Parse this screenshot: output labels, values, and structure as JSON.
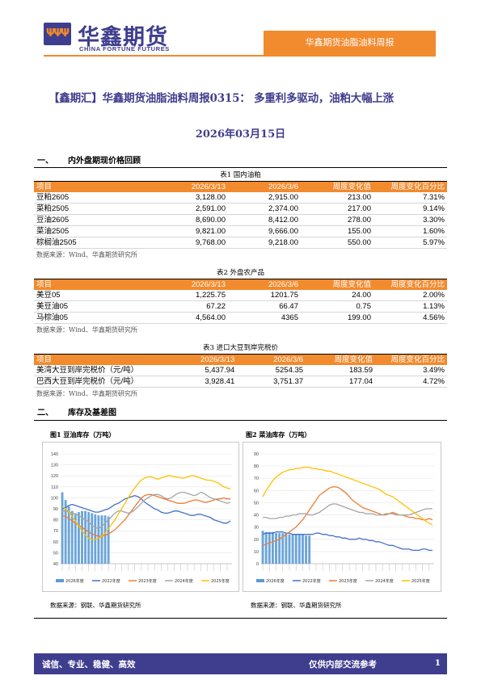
{
  "header": {
    "brand_cn": "华鑫期货",
    "brand_en": "CHINA FORTUNE FUTURES",
    "report_tag": "华鑫期货油脂油料周报"
  },
  "title": "【鑫期汇】华鑫期货油脂油料周报0315：  多重利多驱动，油粕大幅上涨",
  "date": "2026年03月15日",
  "sections": {
    "s1": {
      "num": "一、",
      "title": "内外盘期现价格回顾"
    },
    "s2": {
      "num": "二、",
      "title": "库存及基差图"
    }
  },
  "tables": [
    {
      "caption": "表1 国内油粕",
      "columns": [
        "项目",
        "2026/3/13",
        "2026/3/6",
        "周度变化值",
        "周度变化百分比"
      ],
      "rows": [
        [
          "豆粕2605",
          "3,128.00",
          "2,915.00",
          "213.00",
          "7.31%"
        ],
        [
          "菜粕2505",
          "2,591.00",
          "2,374.00",
          "217.00",
          "9.14%"
        ],
        [
          "豆油2605",
          "8,690.00",
          "8,412.00",
          "278.00",
          "3.30%"
        ],
        [
          "菜油2505",
          "9,821.00",
          "9,666.00",
          "155.00",
          "1.60%"
        ],
        [
          "棕榈油2505",
          "9,768.00",
          "9,218.00",
          "550.00",
          "5.97%"
        ]
      ],
      "source": "数据来源：Wind、华鑫期货研究所"
    },
    {
      "caption": "表2 外盘农产品",
      "columns": [
        "项目",
        "2026/3/13",
        "2026/3/6",
        "周度变化值",
        "周度变化百分比"
      ],
      "rows": [
        [
          "美豆05",
          "1,225.75",
          "1201.75",
          "24.00",
          "2.00%"
        ],
        [
          "美豆油05",
          "67.22",
          "66.47",
          "0.75",
          "1.13%"
        ],
        [
          "马棕油05",
          "4,564.00",
          "4365",
          "199.00",
          "4.56%"
        ]
      ],
      "source": "数据来源：Wind、华鑫期货研究所"
    },
    {
      "caption": "表3 进口大豆到岸完税价",
      "columns": [
        "项目",
        "2026/3/13",
        "2026/3/6",
        "周度变化值",
        "周度变化百分比"
      ],
      "rows": [
        [
          "美湾大豆到岸完税价（元/吨）",
          "5,437.94",
          "5254.35",
          "183.59",
          "3.49%"
        ],
        [
          "巴西大豆到岸完税价（元/吨）",
          "3,928.41",
          "3,751.37",
          "177.04",
          "4.72%"
        ]
      ],
      "source": "数据来源：Wind、华鑫期货研究所"
    }
  ],
  "chart_data": [
    {
      "type": "line",
      "title": "图1 豆油库存（万吨）",
      "ylim": [
        40,
        140
      ],
      "yticks": [
        "140",
        "130",
        "120",
        "110",
        "100",
        "90",
        "80",
        "70",
        "60",
        "50",
        "40"
      ],
      "x_count": 52,
      "series": [
        {
          "name": "2026年度",
          "color": "#5b9bd5",
          "kind": "bar",
          "values": [
            105,
            98,
            92,
            88,
            86,
            87,
            88,
            88,
            87,
            86,
            85,
            84,
            84,
            84,
            83
          ]
        },
        {
          "name": "2022年度",
          "color": "#4472c4",
          "values": [
            90,
            91,
            93,
            94,
            93,
            92,
            91,
            90,
            89,
            88,
            87,
            87,
            88,
            89,
            90,
            92,
            94,
            95,
            97,
            99,
            100,
            101,
            102,
            101,
            99,
            96,
            94,
            92,
            90,
            89,
            87,
            86,
            86,
            87,
            88,
            88,
            87,
            86,
            85,
            84,
            84,
            85,
            85,
            84,
            83,
            82,
            80,
            79,
            78,
            77,
            77,
            79
          ]
        },
        {
          "name": "2023年度",
          "color": "#ed7d31",
          "values": [
            84,
            83,
            81,
            79,
            77,
            75,
            73,
            71,
            69,
            67,
            66,
            65,
            65,
            66,
            67,
            69,
            71,
            74,
            77,
            80,
            84,
            88,
            92,
            96,
            100,
            102,
            103,
            103,
            102,
            101,
            100,
            99,
            98,
            97,
            96,
            95,
            95,
            95,
            96,
            97,
            98,
            98,
            97,
            96,
            96,
            97,
            98,
            99,
            99,
            100,
            99,
            99
          ]
        },
        {
          "name": "2024年度",
          "color": "#a5a5a5",
          "values": [
            88,
            88,
            87,
            86,
            85,
            84,
            82,
            80,
            78,
            75,
            73,
            72,
            74,
            77,
            80,
            83,
            86,
            88,
            88,
            87,
            86,
            87,
            89,
            92,
            95,
            98,
            100,
            102,
            103,
            103,
            102,
            100,
            99,
            100,
            102,
            104,
            105,
            105,
            104,
            103,
            102,
            103,
            105,
            104,
            102,
            100,
            99,
            98,
            97,
            96,
            95,
            96
          ]
        },
        {
          "name": "2025年度",
          "color": "#ffc000",
          "values": [
            92,
            90,
            87,
            83,
            79,
            74,
            70,
            66,
            63,
            62,
            62,
            63,
            65,
            68,
            72,
            76,
            80,
            85,
            90,
            95,
            100,
            105,
            109,
            113,
            116,
            118,
            119,
            119,
            118,
            117,
            118,
            119,
            120,
            120,
            119,
            119,
            118,
            118,
            119,
            120,
            120,
            119,
            118,
            117,
            116,
            116,
            115,
            114,
            112,
            110,
            109,
            108
          ]
        }
      ],
      "source": "数据来源：钢联、华鑫期货研究所"
    },
    {
      "type": "line",
      "title": "图2 菜油库存（万吨）",
      "ylim": [
        0,
        90
      ],
      "yticks": [
        "90",
        "80",
        "70",
        "60",
        "50",
        "40",
        "30",
        "20",
        "10",
        "0"
      ],
      "x_count": 52,
      "series": [
        {
          "name": "2026年度",
          "color": "#5b9bd5",
          "kind": "bar",
          "values": [
            27,
            26,
            26,
            26,
            25,
            25,
            25,
            25,
            24,
            24,
            24,
            24,
            24,
            23,
            23
          ]
        },
        {
          "name": "2022年度",
          "color": "#4472c4",
          "values": [
            24,
            25,
            25,
            25,
            26,
            26,
            26,
            25,
            25,
            24,
            24,
            24,
            24,
            24,
            24,
            24,
            25,
            25,
            24,
            24,
            23,
            23,
            22,
            22,
            21,
            21,
            20,
            20,
            20,
            21,
            20,
            20,
            19,
            19,
            18,
            18,
            17,
            16,
            15,
            15,
            14,
            13,
            12,
            12,
            12,
            11,
            11,
            11,
            12,
            12,
            11,
            11
          ]
        },
        {
          "name": "2023年度",
          "color": "#ed7d31",
          "values": [
            15,
            16,
            17,
            18,
            19,
            20,
            22,
            24,
            26,
            28,
            30,
            33,
            36,
            40,
            44,
            48,
            52,
            56,
            58,
            60,
            62,
            63,
            63,
            62,
            60,
            58,
            55,
            52,
            50,
            48,
            46,
            45,
            44,
            43,
            42,
            41,
            40,
            40,
            41,
            42,
            41,
            40,
            40,
            39,
            38,
            38,
            37,
            37,
            36,
            36,
            37,
            36
          ]
        },
        {
          "name": "2024年度",
          "color": "#a5a5a5",
          "values": [
            38,
            38,
            37,
            37,
            37,
            38,
            38,
            39,
            39,
            40,
            40,
            41,
            41,
            41,
            40,
            40,
            41,
            42,
            44,
            46,
            48,
            49,
            49,
            48,
            47,
            46,
            45,
            44,
            43,
            42,
            42,
            41,
            41,
            41,
            40,
            40,
            40,
            41,
            41,
            41,
            40,
            40,
            40,
            40,
            40,
            41,
            42,
            43,
            44,
            45,
            45,
            45
          ]
        },
        {
          "name": "2025年度",
          "color": "#ffc000",
          "values": [
            55,
            60,
            64,
            68,
            71,
            73,
            75,
            76,
            77,
            77,
            78,
            78,
            79,
            79,
            79,
            78,
            78,
            77,
            77,
            76,
            76,
            75,
            74,
            73,
            72,
            71,
            70,
            69,
            68,
            67,
            66,
            65,
            64,
            63,
            62,
            61,
            59,
            57,
            56,
            55,
            53,
            51,
            49,
            47,
            45,
            43,
            41,
            39,
            37,
            35,
            33,
            32
          ]
        }
      ],
      "source": "数据来源：钢联、华鑫期货研究所"
    }
  ],
  "footer": {
    "left": "诚信、专业、稳健、高效",
    "right": "仅供内部交流参考",
    "page": "1"
  }
}
